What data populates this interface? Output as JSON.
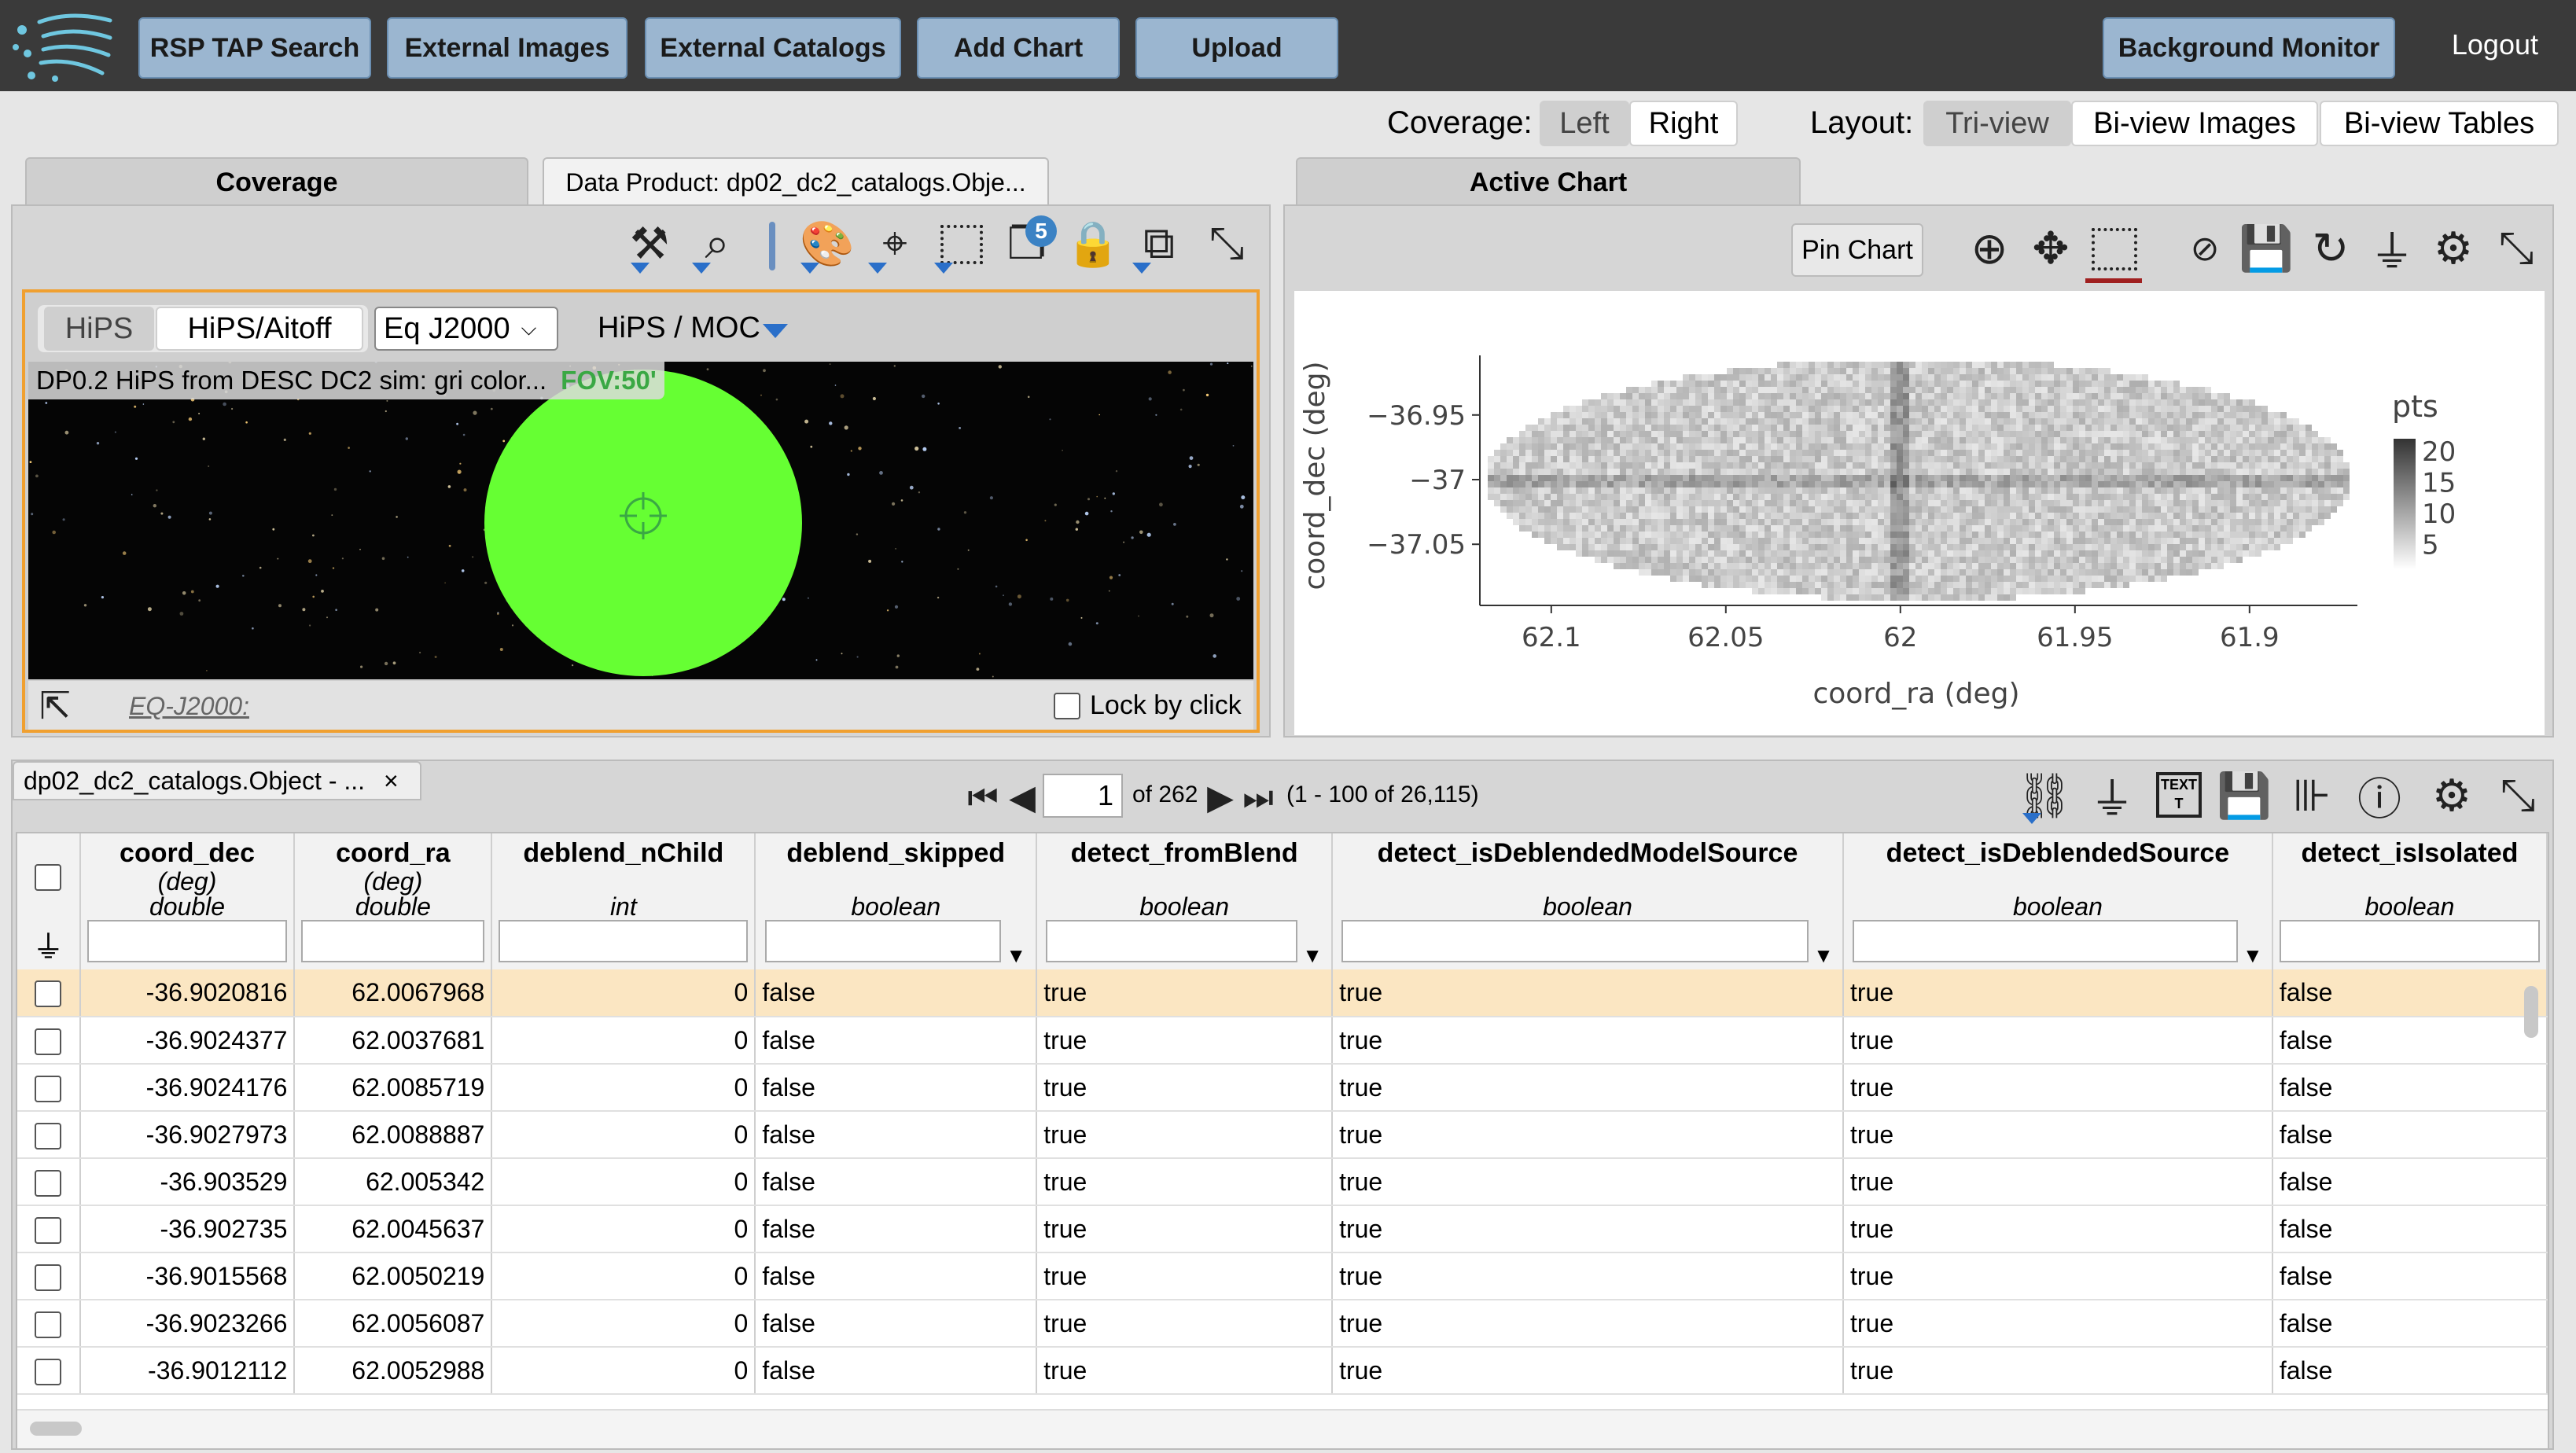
{
  "topbar": {
    "buttons": [
      "RSP TAP Search",
      "External Images",
      "External Catalogs",
      "Add Chart",
      "Upload"
    ],
    "background_monitor": "Background Monitor",
    "logout": "Logout"
  },
  "toggles": {
    "coverage_label": "Coverage:",
    "coverage_options": [
      "Left",
      "Right"
    ],
    "coverage_selected": "Left",
    "layout_label": "Layout:",
    "layout_options": [
      "Tri-view",
      "Bi-view Images",
      "Bi-view Tables"
    ],
    "layout_selected": "Tri-view"
  },
  "left_panel": {
    "tabs": [
      "Coverage",
      "Data Product: dp02_dc2_catalogs.Obje..."
    ],
    "toolbar_icons": [
      "tools-icon",
      "zoom-icon",
      "divider-icon",
      "color-palette-icon",
      "center-target-icon",
      "select-area-icon",
      "layers-icon",
      "lock-colors-icon",
      "lock-layers-icon",
      "expand-icon"
    ],
    "layers_badge": "5",
    "viewer": {
      "proj_options": [
        "HiPS",
        "HiPS/Aitoff"
      ],
      "proj_selected": "HiPS",
      "coord_select": "Eq J2000",
      "hips_moc": "HiPS / MOC",
      "image_title": "DP0.2 HiPS from DESC DC2 sim: gri color...",
      "fov": "FOV:50'",
      "coord_readout": "EQ-J2000:",
      "lock_by_click": "Lock by click"
    }
  },
  "right_panel": {
    "tab": "Active Chart",
    "pin_chart": "Pin Chart",
    "toolbar_icons": [
      "zoom-in-icon",
      "pan-icon",
      "select-icon",
      "zoom-1x-icon",
      "save-icon",
      "restore-icon",
      "filter-icon",
      "settings-icon",
      "expand-icon"
    ]
  },
  "chart_data": {
    "type": "heatmap",
    "xlabel": "coord_ra (deg)",
    "ylabel": "coord_dec (deg)",
    "x_ticks": [
      "62.1",
      "62.05",
      "62",
      "61.95",
      "61.9"
    ],
    "y_ticks": [
      "−36.95",
      "−37",
      "−37.05"
    ],
    "xlim": [
      62.12,
      61.87
    ],
    "ylim": [
      -37.09,
      -36.91
    ],
    "colorbar_title": "pts",
    "colorbar_ticks": [
      "20",
      "15",
      "10",
      "5"
    ],
    "colorbar_range": [
      1,
      22
    ],
    "grid": false
  },
  "table": {
    "tab_label": "dp02_dc2_catalogs.Object - ...",
    "close": "×",
    "page_value": "1",
    "page_of": "of 262",
    "range_info": "(1 - 100 of 26,115)",
    "toolbar_icons": [
      "column-select-icon",
      "filter-icon",
      "text-view-icon",
      "save-icon",
      "add-column-icon",
      "info-icon",
      "settings-icon",
      "expand-icon"
    ],
    "columns": [
      {
        "name": "coord_dec",
        "unit": "(deg)",
        "type": "double"
      },
      {
        "name": "coord_ra",
        "unit": "(deg)",
        "type": "double"
      },
      {
        "name": "deblend_nChild",
        "unit": "",
        "type": "int"
      },
      {
        "name": "deblend_skipped",
        "unit": "",
        "type": "boolean"
      },
      {
        "name": "detect_fromBlend",
        "unit": "",
        "type": "boolean"
      },
      {
        "name": "detect_isDeblendedModelSource",
        "unit": "",
        "type": "boolean"
      },
      {
        "name": "detect_isDeblendedSource",
        "unit": "",
        "type": "boolean"
      },
      {
        "name": "detect_isIsolated",
        "unit": "",
        "type": "boolean"
      }
    ],
    "rows": [
      [
        "-36.9020816",
        "62.0067968",
        "0",
        "false",
        "true",
        "true",
        "true",
        "false"
      ],
      [
        "-36.9024377",
        "62.0037681",
        "0",
        "false",
        "true",
        "true",
        "true",
        "false"
      ],
      [
        "-36.9024176",
        "62.0085719",
        "0",
        "false",
        "true",
        "true",
        "true",
        "false"
      ],
      [
        "-36.9027973",
        "62.0088887",
        "0",
        "false",
        "true",
        "true",
        "true",
        "false"
      ],
      [
        "-36.903529",
        "62.005342",
        "0",
        "false",
        "true",
        "true",
        "true",
        "false"
      ],
      [
        "-36.902735",
        "62.0045637",
        "0",
        "false",
        "true",
        "true",
        "true",
        "false"
      ],
      [
        "-36.9015568",
        "62.0050219",
        "0",
        "false",
        "true",
        "true",
        "true",
        "false"
      ],
      [
        "-36.9023266",
        "62.0056087",
        "0",
        "false",
        "true",
        "true",
        "true",
        "false"
      ],
      [
        "-36.9012112",
        "62.0052988",
        "0",
        "false",
        "true",
        "true",
        "true",
        "false"
      ]
    ],
    "selected_row": 0
  },
  "colors": {
    "topbar": "#3a3a3a",
    "button": "#9bb6d0",
    "coverage_fill": "#66ff33",
    "viewer_border": "#f0a030",
    "selected_row": "#fbe6c2",
    "dropdown_arrow": "#2a6fc9"
  }
}
